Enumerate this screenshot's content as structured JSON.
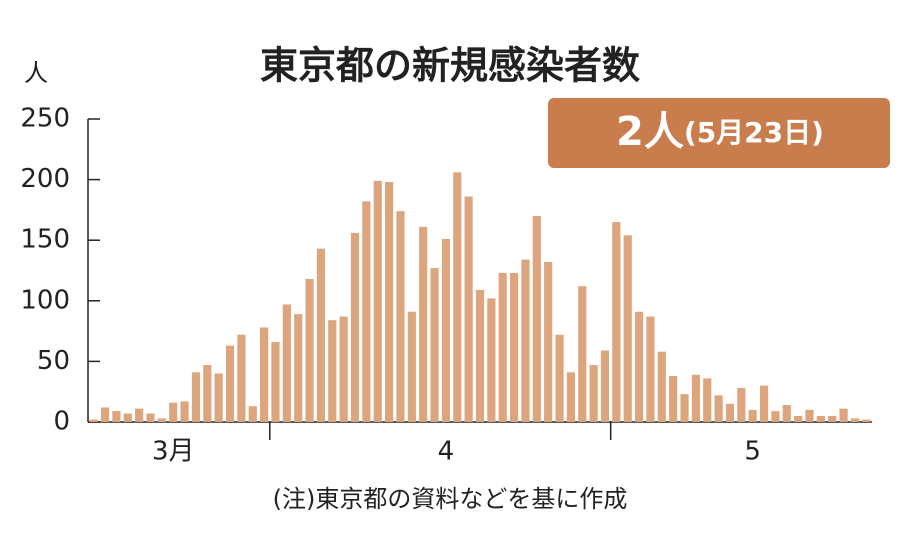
{
  "chart_data": {
    "type": "bar",
    "title": "東京都の新規感染者数",
    "y_label": "人",
    "annotation": [
      "2人",
      "(5月23日)"
    ],
    "note": "(注)東京都の資料などを基に作成",
    "color": "#dda57d",
    "ylim": [
      0,
      250
    ],
    "yticks": [
      0,
      50,
      100,
      150,
      200,
      250
    ],
    "categories": [
      null,
      null,
      null,
      null,
      null,
      null,
      null,
      "3月",
      null,
      null,
      null,
      null,
      null,
      null,
      null,
      null,
      null,
      null,
      null,
      null,
      null,
      null,
      null,
      null,
      null,
      null,
      null,
      null,
      null,
      null,
      null,
      "4",
      null,
      null,
      null,
      null,
      null,
      null,
      null,
      null,
      null,
      null,
      null,
      null,
      null,
      null,
      null,
      null,
      null,
      null,
      null,
      null,
      null,
      null,
      null,
      null,
      null,
      null,
      "5",
      null,
      null,
      null,
      null,
      null,
      null,
      null,
      null,
      null,
      null
    ],
    "values": [
      2,
      12,
      9,
      7,
      11,
      7,
      3,
      16,
      17,
      41,
      47,
      40,
      63,
      72,
      13,
      78,
      66,
      97,
      89,
      118,
      143,
      84,
      87,
      156,
      182,
      199,
      198,
      174,
      91,
      161,
      127,
      151,
      206,
      186,
      109,
      102,
      123,
      123,
      134,
      170,
      132,
      72,
      41,
      112,
      47,
      59,
      165,
      154,
      91,
      87,
      58,
      38,
      23,
      39,
      36,
      22,
      15,
      28,
      10,
      30,
      9,
      14,
      5,
      10,
      5,
      5,
      11,
      3,
      2
    ]
  }
}
